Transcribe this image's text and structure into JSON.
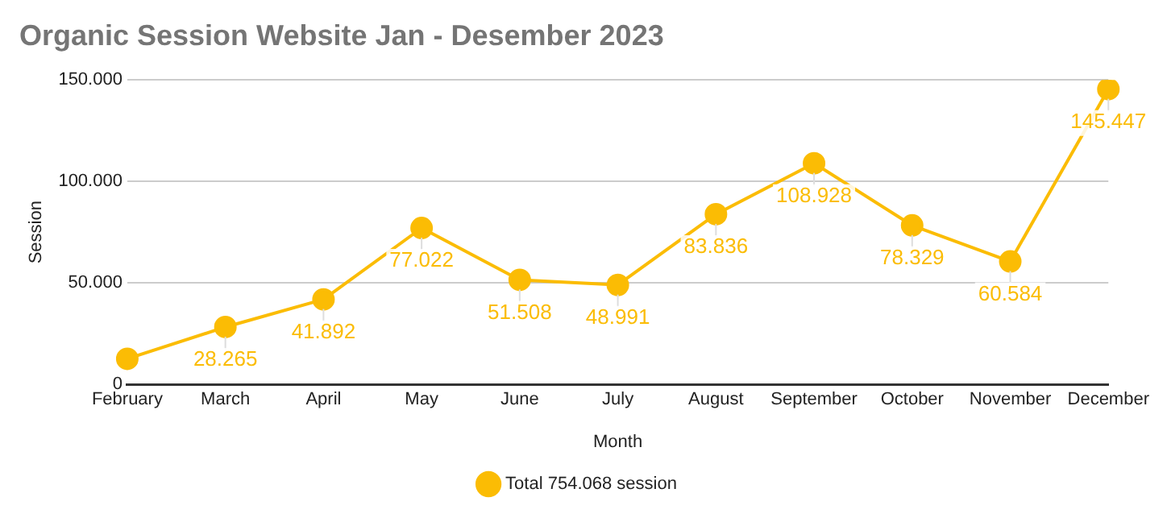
{
  "chart_data": {
    "type": "line",
    "title": "Organic Session Website Jan - Desember 2023",
    "xlabel": "Month",
    "ylabel": "Session",
    "categories": [
      "February",
      "March",
      "April",
      "May",
      "June",
      "July",
      "August",
      "September",
      "October",
      "November",
      "December"
    ],
    "series": [
      {
        "name": "Total 754.068 session",
        "color": "#fbbc04",
        "values": [
          12600,
          28265,
          41892,
          77022,
          51508,
          48991,
          83836,
          108928,
          78329,
          60584,
          145447
        ],
        "value_labels": [
          null,
          "28.265",
          "41.892",
          "77.022",
          "51.508",
          "48.991",
          "83.836",
          "108.928",
          "78.329",
          "60.584",
          "145.447"
        ]
      }
    ],
    "ylim": [
      0,
      150000
    ],
    "yticks": [
      {
        "value": 0,
        "label": "0"
      },
      {
        "value": 50000,
        "label": "50.000"
      },
      {
        "value": 100000,
        "label": "100.000"
      },
      {
        "value": 150000,
        "label": "150.000"
      }
    ],
    "grid": "y",
    "legend": "bottom",
    "marker": "circle",
    "line_style": "solid"
  }
}
